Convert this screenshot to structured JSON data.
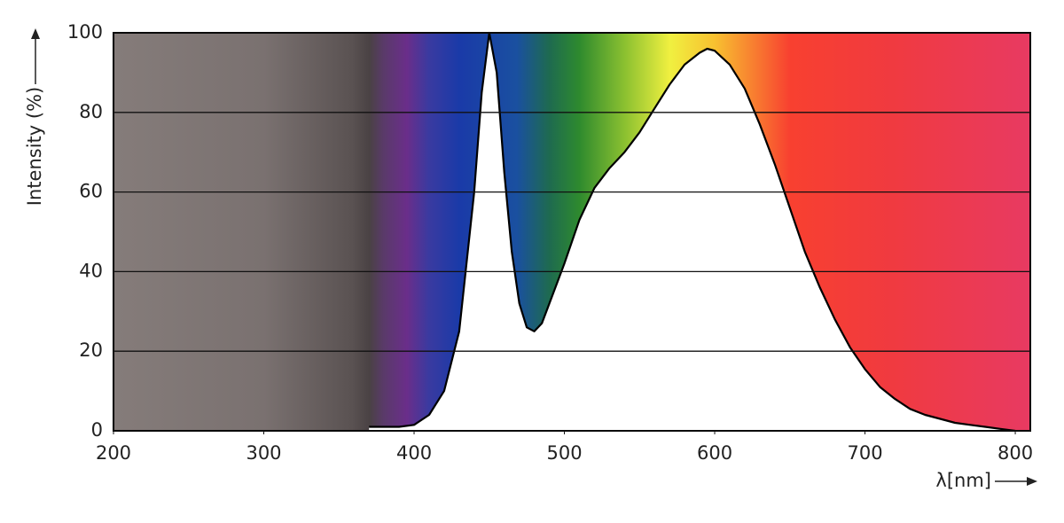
{
  "chart_data": {
    "type": "area",
    "y_label": "Intensity (%)",
    "x_label": "λ[nm]",
    "x": [
      370,
      380,
      390,
      400,
      410,
      420,
      430,
      440,
      445,
      450,
      455,
      460,
      465,
      470,
      475,
      480,
      485,
      490,
      500,
      510,
      520,
      530,
      540,
      550,
      560,
      570,
      580,
      590,
      595,
      600,
      610,
      620,
      630,
      640,
      650,
      660,
      670,
      680,
      690,
      700,
      710,
      720,
      730,
      740,
      750,
      760,
      770,
      780,
      790,
      800
    ],
    "values": [
      1,
      1,
      1,
      1.5,
      4,
      10,
      25,
      60,
      85,
      100,
      90,
      65,
      45,
      32,
      26,
      25,
      27,
      32,
      42,
      53,
      61,
      66,
      70,
      75,
      81,
      87,
      92,
      95,
      96,
      95.5,
      92,
      86,
      77,
      67,
      56,
      45,
      36,
      28,
      21,
      15.5,
      11,
      8,
      5.5,
      4,
      3,
      2,
      1.5,
      1,
      0.5,
      0
    ],
    "color": "#ffffff",
    "line_color": "#000000",
    "xlim": [
      200,
      810
    ],
    "xticks": [
      200,
      300,
      400,
      500,
      600,
      700,
      800
    ],
    "ylim": [
      0,
      100
    ],
    "yticks": [
      0,
      20,
      40,
      60,
      80,
      100
    ],
    "grid": true
  }
}
